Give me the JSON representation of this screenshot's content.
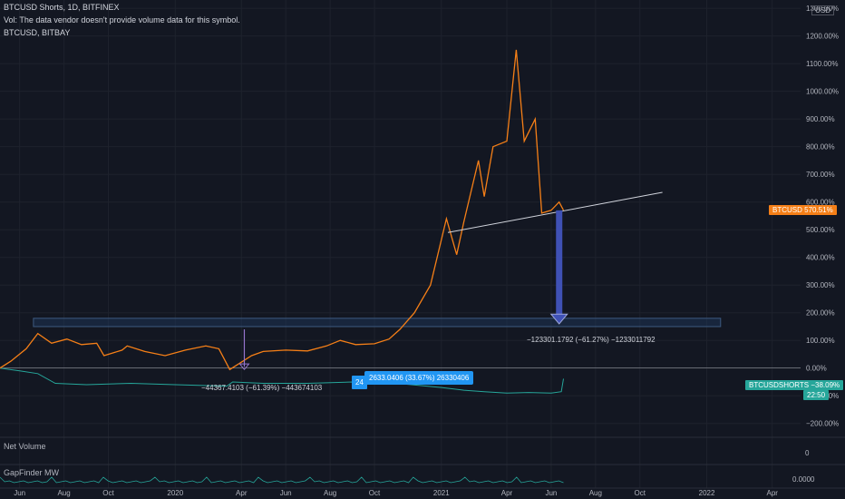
{
  "header": {
    "title_line": "BTCUSD Shorts, 1D, BITFINEX",
    "vol_line": "Vol: The data vendor doesn't provide volume data for this symbol.",
    "compare_line": "BTCUSD, BITBAY",
    "currency": "USD"
  },
  "panes": {
    "net_volume_label": "Net Volume",
    "gapfinder_label": "GapFinder MW",
    "net_volume_axis": "0",
    "gapfinder_axis": "0.0000"
  },
  "badges": {
    "btcusd_name": "BTCUSD",
    "btcusd_value": "570.51%",
    "shorts_name": "BTCUSDSHORTS",
    "shorts_value": "−38.09%",
    "countdown": "22:50"
  },
  "colors": {
    "background": "#131722",
    "btcusd_line": "#f57f17",
    "shorts_line": "#26a69a",
    "support_box": "#1e3a5f",
    "arrow_blue": "#1a237e",
    "label_blue": "#2196f3",
    "grid": "#1e222d"
  },
  "chart_data": {
    "type": "line",
    "y_axis_unit": "%",
    "y_ticks": [
      "1300.00%",
      "1200.00%",
      "1100.00%",
      "1000.00%",
      "900.00%",
      "800.00%",
      "700.00%",
      "600.00%",
      "500.00%",
      "400.00%",
      "300.00%",
      "200.00%",
      "100.00%",
      "0.00%",
      "−100.00%",
      "−200.00%"
    ],
    "ylim": [
      -250,
      1330
    ],
    "x_ticks": [
      "Jun",
      "Aug",
      "Oct",
      "2020",
      "Apr",
      "Jun",
      "Aug",
      "Oct",
      "2021",
      "Apr",
      "Jun",
      "Aug",
      "Oct",
      "2022",
      "Apr"
    ],
    "xlim": [
      "2019-05-05",
      "2022-05-10"
    ],
    "series": [
      {
        "name": "BTCUSD",
        "x": [
          "2019-05-05",
          "2019-05-20",
          "2019-06-10",
          "2019-06-26",
          "2019-07-15",
          "2019-08-05",
          "2019-08-25",
          "2019-09-15",
          "2019-09-25",
          "2019-10-20",
          "2019-10-27",
          "2019-11-20",
          "2019-12-18",
          "2020-01-15",
          "2020-02-12",
          "2020-03-01",
          "2020-03-12",
          "2020-03-16",
          "2020-04-15",
          "2020-05-01",
          "2020-06-01",
          "2020-07-01",
          "2020-07-27",
          "2020-08-15",
          "2020-09-05",
          "2020-10-01",
          "2020-10-21",
          "2020-11-05",
          "2020-11-25",
          "2020-12-17",
          "2021-01-08",
          "2021-01-22",
          "2021-02-01",
          "2021-02-21",
          "2021-03-01",
          "2021-03-13",
          "2021-04-01",
          "2021-04-14",
          "2021-04-25",
          "2021-05-10",
          "2021-05-19",
          "2021-06-01",
          "2021-06-12",
          "2021-06-18"
        ],
        "values": [
          0,
          25,
          70,
          125,
          90,
          105,
          85,
          90,
          45,
          65,
          80,
          60,
          45,
          65,
          80,
          70,
          15,
          -5,
          45,
          60,
          65,
          62,
          80,
          100,
          85,
          88,
          105,
          140,
          200,
          300,
          540,
          410,
          530,
          750,
          620,
          800,
          820,
          1150,
          820,
          900,
          560,
          570,
          600,
          570.51
        ]
      },
      {
        "name": "BTCUSDSHORTS",
        "x": [
          "2019-05-05",
          "2019-06-01",
          "2019-06-26",
          "2019-07-20",
          "2019-09-01",
          "2019-11-01",
          "2020-01-01",
          "2020-03-12",
          "2020-03-20",
          "2020-05-01",
          "2020-07-01",
          "2020-09-01",
          "2020-11-01",
          "2021-01-01",
          "2021-02-01",
          "2021-03-01",
          "2021-04-01",
          "2021-05-01",
          "2021-06-01",
          "2021-06-15",
          "2021-06-18"
        ],
        "values": [
          0,
          -10,
          -20,
          -55,
          -60,
          -55,
          -60,
          -65,
          -50,
          -55,
          -55,
          -50,
          -55,
          -70,
          -80,
          -85,
          -90,
          -88,
          -90,
          -85,
          -38.09
        ]
      }
    ],
    "annotations": [
      {
        "text": "−123301.1792 (−61.27%) −1233011792"
      },
      {
        "text": "−44367.4103 (−61.39%) −443674103"
      },
      {
        "text": "2633.0406 (33.67%) 26330406",
        "prefix": "24"
      }
    ]
  }
}
